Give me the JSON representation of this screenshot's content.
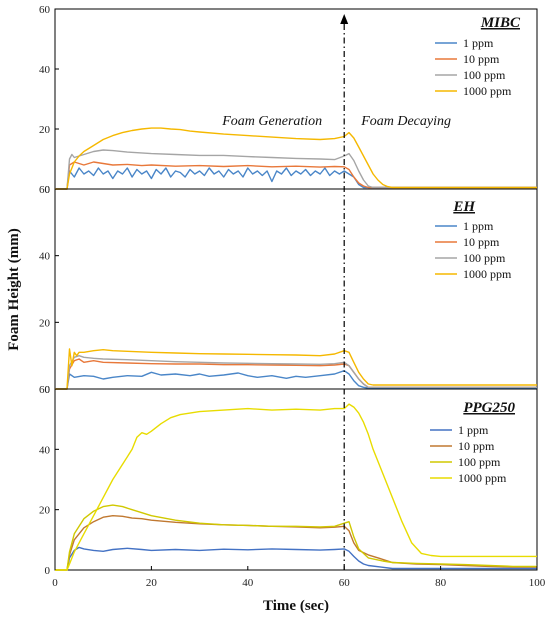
{
  "chart_data": {
    "type": "line",
    "xlabel": "Time (sec)",
    "ylabel": "Foam Height (mm)",
    "xlim": [
      0,
      100
    ],
    "x_ticks": [
      0,
      20,
      40,
      60,
      80,
      100
    ],
    "grid": false,
    "legend_placement": "top-right",
    "annotations": {
      "generation": "Foam Generation",
      "decaying": "Foam Decaying",
      "marker_time": 60
    },
    "panels": [
      {
        "title": "MIBC",
        "ylim": [
          0,
          60
        ],
        "y_ticks": [
          0,
          20,
          40,
          60
        ],
        "series": [
          {
            "name": "1 ppm",
            "color": "#4a86c8",
            "x": [
              0,
              2.5,
              3,
              4,
              5,
              6,
              7,
              8,
              9,
              10,
              11,
              12,
              13,
              14,
              15,
              16,
              17,
              18,
              19,
              20,
              21,
              22,
              23,
              24,
              25,
              26,
              27,
              28,
              29,
              30,
              31,
              32,
              33,
              34,
              35,
              36,
              37,
              38,
              39,
              40,
              41,
              42,
              43,
              44,
              45,
              46,
              47,
              48,
              49,
              50,
              51,
              52,
              53,
              54,
              55,
              56,
              57,
              58,
              59,
              60,
              61,
              62,
              63,
              64,
              100
            ],
            "y": [
              0,
              0,
              6,
              4,
              7,
              5,
              6,
              4.5,
              7,
              5,
              6,
              3.5,
              6,
              5,
              7,
              4,
              6.5,
              5,
              6,
              3.5,
              6.5,
              5,
              7,
              4,
              6,
              5.5,
              4,
              6.5,
              5,
              6,
              4.5,
              7,
              5,
              6,
              4,
              6.5,
              5,
              6,
              4,
              7,
              5,
              6,
              4.5,
              6,
              2.5,
              6,
              5,
              7,
              4.5,
              6,
              5,
              6.5,
              4.5,
              6,
              5,
              7,
              4.5,
              6,
              5,
              6,
              5,
              4,
              1.5,
              0.5,
              0.5
            ]
          },
          {
            "name": "10 ppm",
            "color": "#e8783a",
            "x": [
              0,
              2.5,
              3,
              4,
              5,
              6,
              8,
              10,
              12,
              15,
              18,
              20,
              25,
              30,
              35,
              40,
              45,
              50,
              55,
              58,
              60,
              61,
              62,
              63,
              64,
              65,
              100
            ],
            "y": [
              0,
              0,
              8,
              9,
              8.5,
              8,
              9,
              8.5,
              8,
              8.2,
              7.8,
              8,
              7.6,
              7.8,
              7.5,
              7.8,
              7.4,
              7.6,
              7.3,
              7.5,
              7.4,
              6.5,
              4,
              2,
              1,
              0.5,
              0.5
            ]
          },
          {
            "name": "100 ppm",
            "color": "#a5a5a5",
            "x": [
              0,
              2.5,
              3,
              3.5,
              4,
              5,
              6,
              8,
              10,
              12,
              15,
              20,
              25,
              30,
              35,
              40,
              45,
              50,
              55,
              58,
              60,
              61,
              62,
              63,
              64,
              65,
              66,
              100
            ],
            "y": [
              0,
              0,
              10,
              11.5,
              10.5,
              11,
              11.5,
              12.5,
              13,
              12.8,
              12.3,
              11.8,
              11.5,
              11.2,
              11.2,
              10.8,
              10.5,
              10.2,
              10,
              9.8,
              11,
              11.8,
              9.5,
              6,
              3,
              1,
              0.5,
              0.5
            ]
          },
          {
            "name": "1000 ppm",
            "color": "#f5b800",
            "x": [
              0,
              2.5,
              3,
              4,
              5,
              6,
              8,
              10,
              12,
              14,
              16,
              18,
              20,
              22,
              24,
              26,
              28,
              30,
              35,
              40,
              45,
              50,
              55,
              58,
              60,
              61,
              62,
              63,
              64,
              65,
              66,
              67,
              68,
              69,
              70,
              71,
              100
            ],
            "y": [
              0,
              0,
              5,
              9,
              11,
              12.5,
              14.5,
              16.5,
              17.8,
              18.8,
              19.5,
              20,
              20.3,
              20.3,
              20,
              19.8,
              19.3,
              19,
              18.3,
              17.8,
              17.3,
              16.8,
              16.5,
              16.8,
              17.5,
              18.8,
              17,
              14,
              11,
              8,
              5,
              3,
              1.5,
              0.8,
              0.5,
              0.5,
              0.5
            ]
          }
        ]
      },
      {
        "title": "EH",
        "ylim": [
          0,
          60
        ],
        "y_ticks": [
          0,
          20,
          40,
          60
        ],
        "series": [
          {
            "name": "1 ppm",
            "color": "#4a86c8",
            "x": [
              0,
              2.5,
              3,
              4,
              6,
              8,
              10,
              12,
              15,
              18,
              20,
              22,
              25,
              28,
              30,
              32,
              35,
              38,
              40,
              42,
              45,
              48,
              50,
              52,
              55,
              58,
              60,
              61,
              62,
              63,
              64,
              65,
              100
            ],
            "y": [
              0,
              0,
              4.5,
              3.5,
              4,
              3.8,
              3,
              3.5,
              4,
              3.8,
              5,
              4.2,
              4.5,
              4,
              4.5,
              3.8,
              4.2,
              4.8,
              4,
              3.5,
              4,
              3.2,
              3.8,
              3.5,
              4,
              4.5,
              5.5,
              4.5,
              2.5,
              1,
              0.5,
              0.3,
              0.3
            ]
          },
          {
            "name": "10 ppm",
            "color": "#e8783a",
            "x": [
              0,
              2.5,
              3,
              4,
              5,
              6,
              8,
              10,
              15,
              20,
              25,
              30,
              35,
              40,
              45,
              50,
              55,
              58,
              60,
              61,
              62,
              63,
              64,
              65,
              100
            ],
            "y": [
              0,
              0,
              6,
              8.5,
              9,
              8,
              8.5,
              8,
              7.8,
              7.6,
              7.5,
              7.5,
              7.3,
              7.3,
              7.2,
              7.1,
              7,
              7.2,
              7.5,
              7,
              5,
              3,
              1.5,
              0.5,
              0.5
            ]
          },
          {
            "name": "100 ppm",
            "color": "#a5a5a5",
            "x": [
              0,
              2.5,
              3,
              4,
              5,
              6,
              8,
              10,
              15,
              20,
              25,
              30,
              35,
              40,
              45,
              50,
              55,
              58,
              60,
              61,
              62,
              63,
              64,
              65,
              100
            ],
            "y": [
              0,
              0,
              7,
              9.5,
              10,
              9.5,
              9.2,
              9,
              8.8,
              8.5,
              8.2,
              8,
              7.8,
              7.7,
              7.6,
              7.5,
              7.4,
              7.6,
              8,
              7,
              5,
              3,
              1.5,
              0.5,
              0.5
            ]
          },
          {
            "name": "1000 ppm",
            "color": "#f5b800",
            "x": [
              0,
              2.5,
              3,
              3.5,
              4,
              4.5,
              5,
              6,
              8,
              10,
              12,
              15,
              20,
              25,
              30,
              35,
              40,
              45,
              50,
              55,
              58,
              60,
              61,
              62,
              63,
              64,
              65,
              66,
              67,
              68,
              100
            ],
            "y": [
              0,
              0,
              12,
              7,
              11,
              10,
              11,
              11,
              11.5,
              11.8,
              11.5,
              11.3,
              11,
              10.8,
              10.6,
              10.5,
              10.4,
              10.3,
              10.2,
              10,
              10.5,
              11.5,
              11,
              8,
              5,
              3,
              1.5,
              1.2,
              1.2,
              1.2,
              1.2
            ]
          }
        ]
      },
      {
        "title": "PPG250",
        "ylim": [
          0,
          60
        ],
        "y_ticks": [
          0,
          20,
          40,
          60
        ],
        "series": [
          {
            "name": "1 ppm",
            "color": "#4472c4",
            "x": [
              0,
              2.5,
              3,
              4,
              5,
              6,
              8,
              10,
              12,
              15,
              18,
              20,
              25,
              30,
              35,
              40,
              45,
              50,
              55,
              58,
              60,
              61,
              62,
              63,
              64,
              65,
              70,
              100
            ],
            "y": [
              0,
              0,
              4,
              6.5,
              7.5,
              7,
              6.5,
              6.2,
              6.8,
              7.2,
              6.8,
              6.5,
              6.8,
              6.5,
              6.9,
              6.7,
              7,
              6.8,
              6.6,
              6.8,
              7,
              6.2,
              4.5,
              3,
              2,
              1.5,
              0.5,
              0.5
            ]
          },
          {
            "name": "10 ppm",
            "color": "#c07830",
            "x": [
              0,
              2.5,
              3,
              4,
              5,
              6,
              8,
              10,
              12,
              14,
              16,
              18,
              20,
              25,
              30,
              35,
              40,
              45,
              50,
              55,
              58,
              60,
              61,
              62,
              63,
              65,
              68,
              70,
              75,
              80,
              85,
              90,
              95,
              100
            ],
            "y": [
              0,
              0,
              5,
              10,
              12,
              14,
              16,
              17.5,
              18,
              17.8,
              17.2,
              17,
              16.5,
              15.8,
              15.3,
              15,
              14.8,
              14.5,
              14.3,
              14,
              14.2,
              14.5,
              13,
              9,
              6.5,
              5,
              3.5,
              2.5,
              2,
              1.8,
              1.5,
              1.2,
              1,
              1
            ]
          },
          {
            "name": "100 ppm",
            "color": "#d0c800",
            "x": [
              0,
              2.5,
              3,
              4,
              5,
              6,
              8,
              10,
              12,
              14,
              16,
              18,
              20,
              25,
              30,
              35,
              40,
              45,
              50,
              55,
              58,
              60,
              61,
              62,
              63,
              65,
              68,
              70,
              75,
              80,
              85,
              90,
              95,
              100
            ],
            "y": [
              0,
              0,
              6,
              12,
              14.5,
              17,
              19.5,
              21,
              21.5,
              21,
              20,
              19,
              18,
              16.5,
              15.5,
              15,
              14.8,
              14.5,
              14.5,
              14.3,
              14.5,
              15.5,
              16,
              11,
              7,
              4,
              3,
              2.5,
              2.2,
              2,
              1.8,
              1.5,
              1.2,
              1.2
            ]
          },
          {
            "name": "1000 ppm",
            "color": "#e8dc00",
            "x": [
              0,
              2.5,
              3,
              4,
              6,
              8,
              10,
              12,
              14,
              16,
              17,
              18,
              19,
              20,
              22,
              24,
              26,
              28,
              30,
              35,
              40,
              45,
              50,
              55,
              58,
              60,
              61,
              62,
              63,
              64,
              65,
              66,
              68,
              70,
              72,
              74,
              76,
              78,
              80,
              85,
              90,
              95,
              100
            ],
            "y": [
              0,
              0,
              2,
              6,
              12,
              18,
              24,
              30,
              35,
              40,
              44,
              45.5,
              45,
              46,
              48.5,
              50.5,
              51.5,
              52,
              52.5,
              53,
              53.5,
              53,
              53.3,
              53,
              53.5,
              53.5,
              55,
              54,
              52,
              49,
              45,
              40,
              32,
              24,
              16,
              9,
              5.5,
              4.8,
              4.5,
              4.5,
              4.5,
              4.5,
              4.5
            ]
          }
        ]
      }
    ]
  }
}
